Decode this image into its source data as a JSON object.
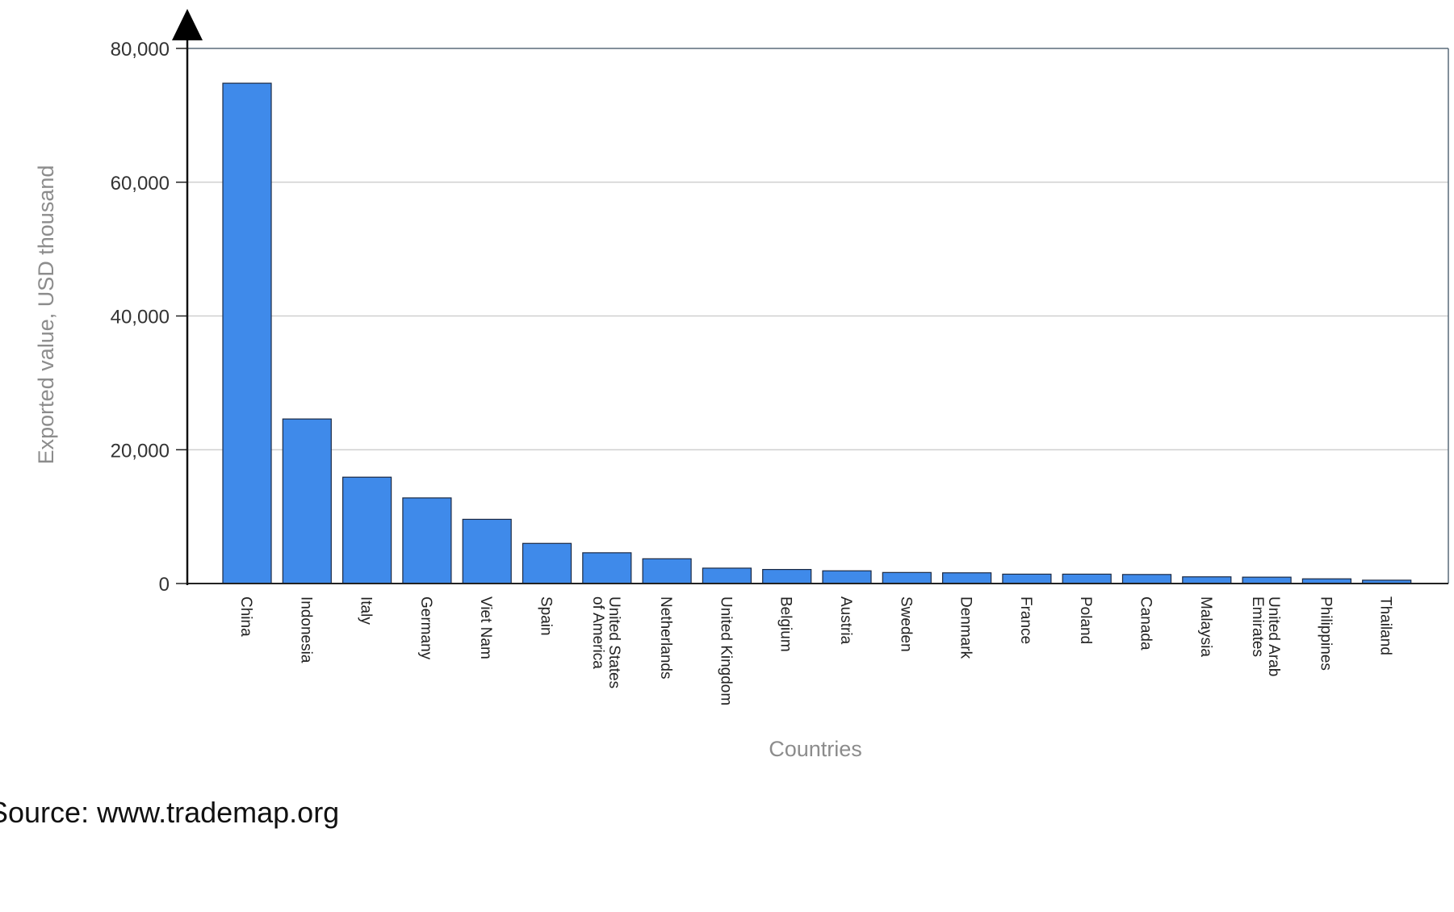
{
  "chart_data": {
    "type": "bar",
    "title": "",
    "xlabel": "Countries",
    "ylabel": "Exported value, USD thousand",
    "ylim": [
      0,
      80000
    ],
    "yticks": [
      0,
      20000,
      40000,
      60000,
      80000
    ],
    "ytick_labels": [
      "0",
      "20,000",
      "40,000",
      "60,000",
      "80,000"
    ],
    "grid": true,
    "legend": "none",
    "bar_color": "#3f8aea",
    "categories": [
      "China",
      "Indonesia",
      "Italy",
      "Germany",
      "Viet Nam",
      "Spain",
      "United States of America",
      "Netherlands",
      "United Kingdom",
      "Belgium",
      "Austria",
      "Sweden",
      "Denmark",
      "France",
      "Poland",
      "Canada",
      "Malaysia",
      "United Arab Emirates",
      "Philippines",
      "Thailand"
    ],
    "category_label_lines": [
      [
        "China"
      ],
      [
        "Indonesia"
      ],
      [
        "Italy"
      ],
      [
        "Germany"
      ],
      [
        "Viet Nam"
      ],
      [
        "Spain"
      ],
      [
        "United States",
        "of America"
      ],
      [
        "Netherlands"
      ],
      [
        "United Kingdom"
      ],
      [
        "Belgium"
      ],
      [
        "Austria"
      ],
      [
        "Sweden"
      ],
      [
        "Denmark"
      ],
      [
        "France"
      ],
      [
        "Poland"
      ],
      [
        "Canada"
      ],
      [
        "Malaysia"
      ],
      [
        "United Arab",
        "Emirates"
      ],
      [
        "Philippines"
      ],
      [
        "Thailand"
      ]
    ],
    "values": [
      74800,
      24600,
      15900,
      12800,
      9600,
      6000,
      4600,
      3700,
      2300,
      2100,
      1900,
      1650,
      1600,
      1400,
      1400,
      1350,
      1000,
      950,
      700,
      500
    ]
  },
  "footer": {
    "source": "Source: www.trademap.org"
  }
}
